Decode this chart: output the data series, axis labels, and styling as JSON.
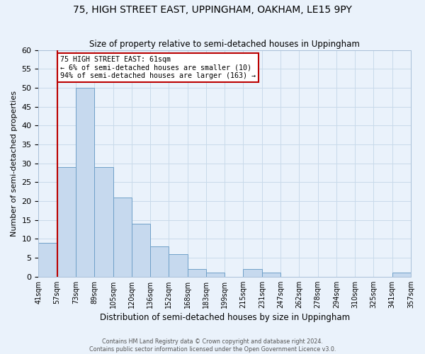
{
  "title": "75, HIGH STREET EAST, UPPINGHAM, OAKHAM, LE15 9PY",
  "subtitle": "Size of property relative to semi-detached houses in Uppingham",
  "xlabel": "Distribution of semi-detached houses by size in Uppingham",
  "ylabel": "Number of semi-detached properties",
  "bin_labels": [
    "41sqm",
    "57sqm",
    "73sqm",
    "89sqm",
    "105sqm",
    "120sqm",
    "136sqm",
    "152sqm",
    "168sqm",
    "183sqm",
    "199sqm",
    "215sqm",
    "231sqm",
    "247sqm",
    "262sqm",
    "278sqm",
    "294sqm",
    "310sqm",
    "325sqm",
    "341sqm",
    "357sqm"
  ],
  "counts": [
    9,
    29,
    50,
    29,
    21,
    14,
    8,
    6,
    2,
    1,
    0,
    2,
    1,
    0,
    0,
    0,
    0,
    0,
    0,
    1
  ],
  "bar_facecolor": "#c6d9ee",
  "bar_edgecolor": "#6fa0c8",
  "grid_color": "#c8daea",
  "background_color": "#eaf2fb",
  "property_bar_index": 1,
  "property_line_color": "#bb0000",
  "annotation_text": "75 HIGH STREET EAST: 61sqm\n← 6% of semi-detached houses are smaller (10)\n94% of semi-detached houses are larger (163) →",
  "annotation_box_edgecolor": "#bb0000",
  "ylim": [
    0,
    60
  ],
  "yticks": [
    0,
    5,
    10,
    15,
    20,
    25,
    30,
    35,
    40,
    45,
    50,
    55,
    60
  ],
  "footer_line1": "Contains HM Land Registry data © Crown copyright and database right 2024.",
  "footer_line2": "Contains public sector information licensed under the Open Government Licence v3.0."
}
